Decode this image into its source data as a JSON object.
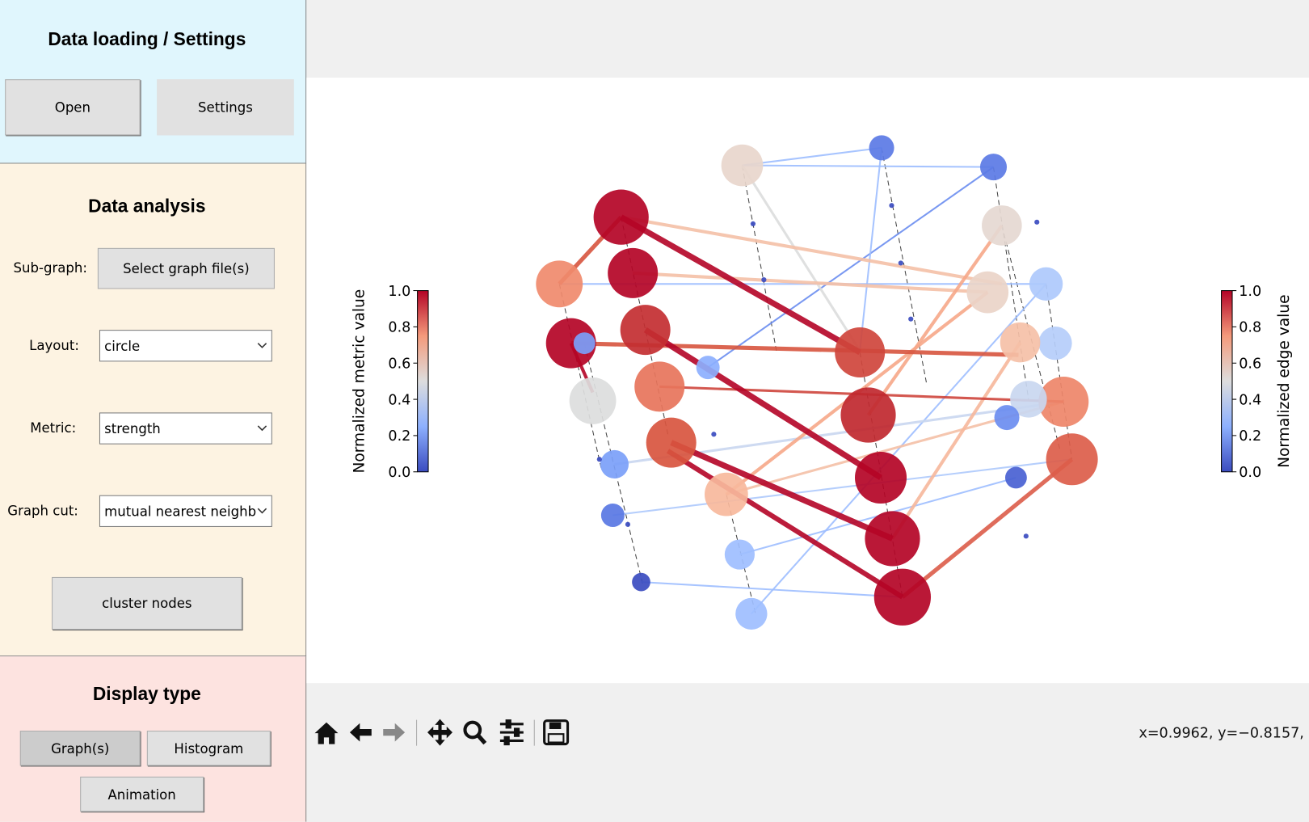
{
  "sidebar": {
    "loading": {
      "title": "Data loading / Settings",
      "buttons": [
        "Open",
        "Settings"
      ]
    },
    "analysis": {
      "title": "Data analysis",
      "subgraph_label": "Sub-graph:",
      "subgraph_button": "Select graph file(s)",
      "layout_label": "Layout:",
      "layout_value": "circle",
      "metric_label": "Metric:",
      "metric_value": "strength",
      "graph_cut_label": "Graph cut:",
      "graph_cut_value": "mutual nearest neighb",
      "cluster_button": "cluster nodes"
    },
    "display": {
      "title": "Display type",
      "buttons": [
        "Graph(s)",
        "Histogram",
        "Animation"
      ]
    }
  },
  "figure": {
    "left_colorbar": {
      "label": "Normalized metric value",
      "ylim": [
        0,
        1
      ],
      "ticks": [
        {
          "value": 0,
          "label": "0.0"
        },
        0.2,
        0.4,
        0.6,
        0.8,
        {
          "value": 1,
          "label": "1.0"
        }
      ]
    },
    "right_colorbar": {
      "label": "Normalized edge value",
      "ylim": [
        0,
        1
      ],
      "ticks": [
        {
          "value": 0,
          "label": "0.0"
        },
        0.2,
        0.4,
        0.6,
        0.8,
        {
          "value": 1,
          "label": "1.0"
        }
      ]
    }
  },
  "toolbar": {
    "coordinates": "x=0.9962, y=−0.8157,"
  }
}
